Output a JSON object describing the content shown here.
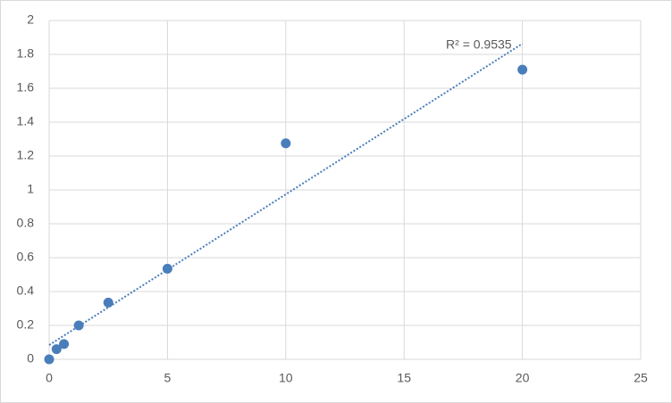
{
  "chart_data": {
    "type": "scatter",
    "x": [
      0,
      0.3125,
      0.625,
      1.25,
      2.5,
      5,
      10,
      20
    ],
    "values": [
      0,
      0.06,
      0.09,
      0.2,
      0.335,
      0.535,
      1.275,
      1.71
    ],
    "color": "#4a7ebb",
    "trendline": "linear",
    "annotation": "R² = 0.9535",
    "xlim": [
      0,
      25
    ],
    "xticks": [
      0,
      5,
      10,
      15,
      20,
      25
    ],
    "ylim": [
      0,
      2
    ],
    "yticks": [
      0,
      0.2,
      0.4,
      0.6,
      0.8,
      1,
      1.2,
      1.4,
      1.6,
      1.8,
      2
    ],
    "grid": true
  }
}
